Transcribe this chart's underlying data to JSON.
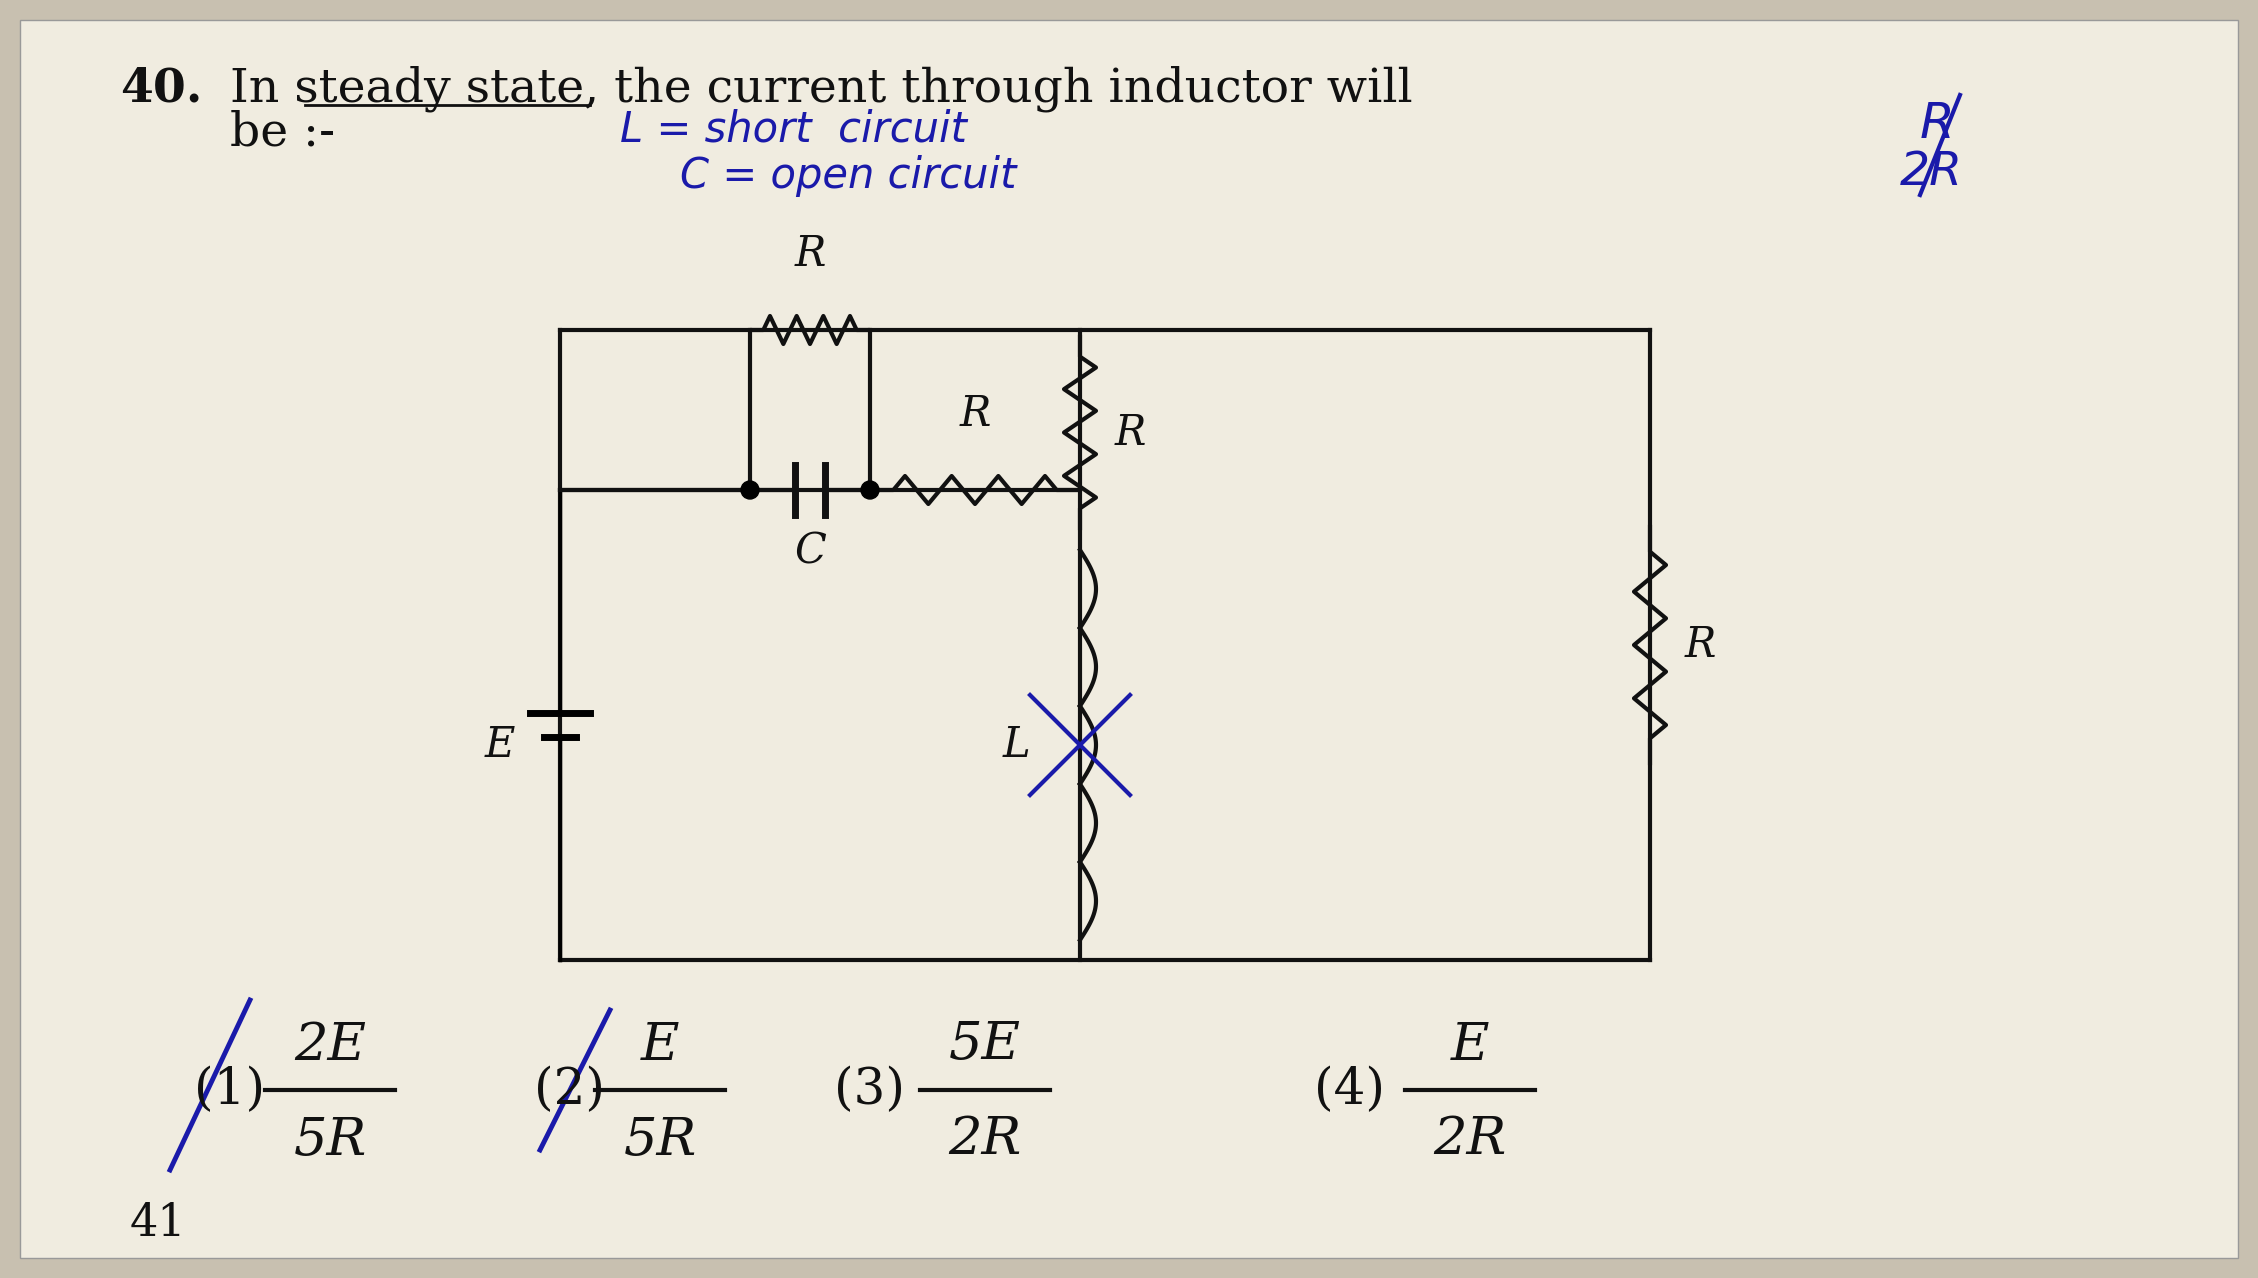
{
  "bg_color": "#c8c0b0",
  "paper_color": "#eeebe3",
  "title_num": "40.",
  "title_text": "In steady state, the current through inductor will",
  "subtitle": "be :-",
  "hw_line1": "L = short circuit",
  "hw_line2": "C = open circuit",
  "hw_r": "R",
  "hw_2r": "2R",
  "options": [
    {
      "num": "(1)",
      "top": "2E",
      "bot": "5R",
      "crossed": true
    },
    {
      "num": "(2)",
      "top": "E",
      "bot": "5R",
      "crossed": true
    },
    {
      "num": "(3)",
      "top": "5E",
      "bot": "2R",
      "crossed": false
    },
    {
      "num": "(4)",
      "top": "E",
      "bot": "2R",
      "crossed": false
    }
  ],
  "page_num": "41",
  "black": "#111111",
  "blue": "#1a1aaa"
}
